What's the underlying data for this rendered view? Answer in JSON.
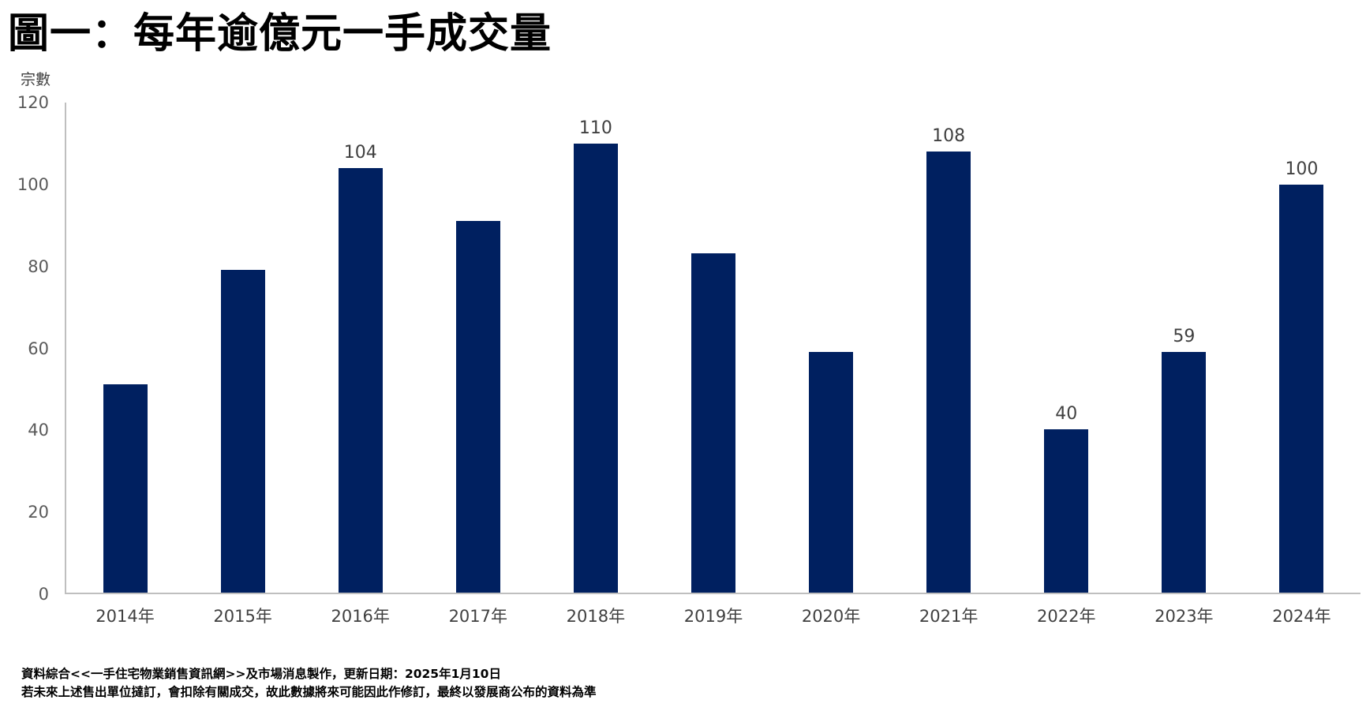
{
  "title": "圖一：每年逾億元一手成交量",
  "y_axis_unit": "宗數",
  "colors": {
    "bar": "#002060",
    "axis_line": "#BFBFBF",
    "y_tick_label": "#595959",
    "x_tick_label": "#404040",
    "data_label": "#404040",
    "title": "#000000"
  },
  "footnotes": [
    "資料綜合<<一手住宅物業銷售資訊網>>及市場消息製作，更新日期：2025年1月10日",
    "若未來上述售出單位撻訂，會扣除有關成交，故此數據將來可能因此作修訂，最終以發展商公布的資料為準"
  ],
  "chart_data": {
    "type": "bar",
    "title": "圖一：每年逾億元一手成交量",
    "xlabel": "",
    "ylabel": "宗數",
    "categories": [
      "2014年",
      "2015年",
      "2016年",
      "2017年",
      "2018年",
      "2019年",
      "2020年",
      "2021年",
      "2022年",
      "2023年",
      "2024年"
    ],
    "values": [
      51,
      79,
      104,
      91,
      110,
      83,
      59,
      108,
      40,
      59,
      100
    ],
    "data_labels": [
      null,
      null,
      "104",
      null,
      "110",
      null,
      null,
      "108",
      "40",
      "59",
      "100"
    ],
    "ylim": [
      0,
      120
    ],
    "yticks": [
      0,
      20,
      40,
      60,
      80,
      100,
      120
    ],
    "grid": false,
    "legend_position": "none"
  }
}
